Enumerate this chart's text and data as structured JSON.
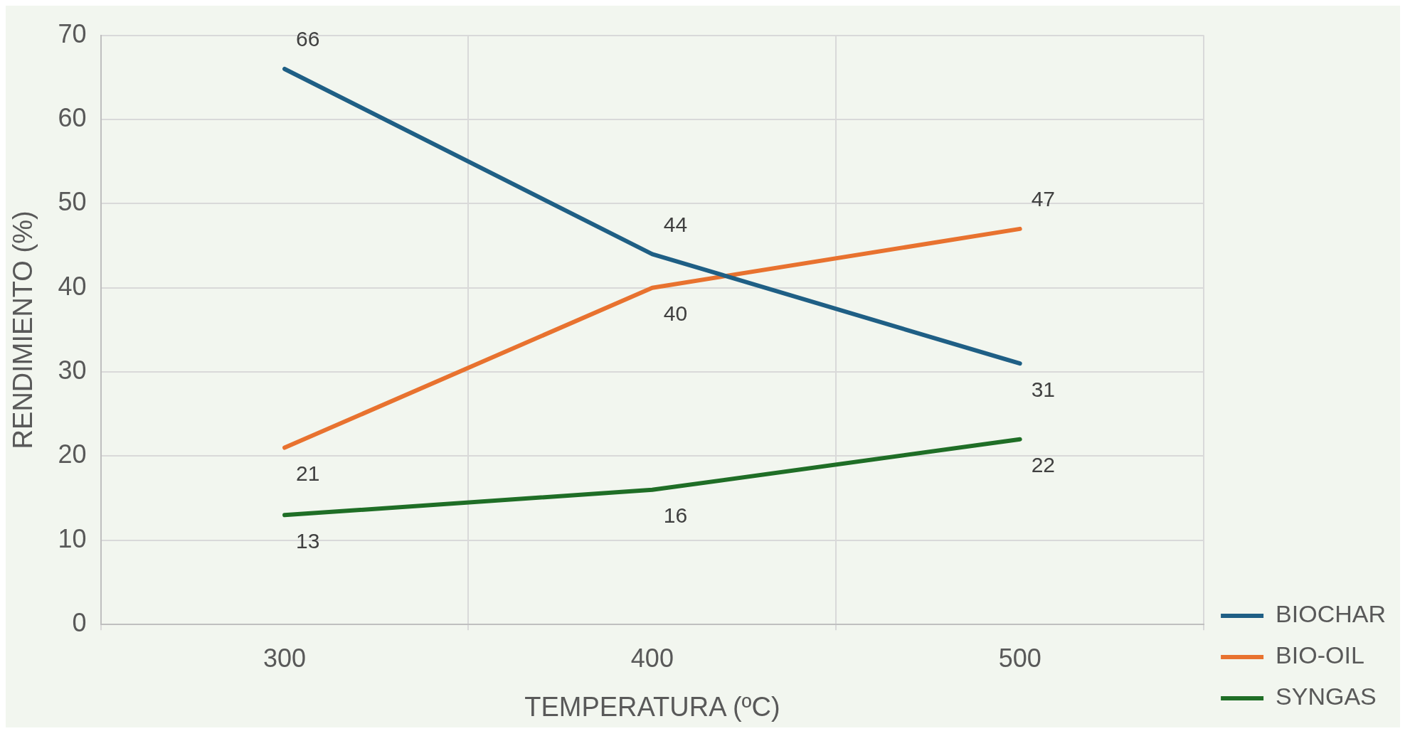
{
  "chart_data": {
    "type": "line",
    "xlabel": "TEMPERATURA (ºC)",
    "ylabel": "RENDIMIENTO (%)",
    "categories": [
      "300",
      "400",
      "500"
    ],
    "series": [
      {
        "name": "BIOCHAR",
        "color": "#1f5f85",
        "values": [
          66,
          44,
          31
        ]
      },
      {
        "name": "BIO-OIL",
        "color": "#e8722f",
        "values": [
          21,
          40,
          47
        ]
      },
      {
        "name": "SYNGAS",
        "color": "#1f6e26",
        "values": [
          13,
          16,
          22
        ]
      }
    ],
    "ylim": [
      0,
      70
    ],
    "yticks": [
      0,
      10,
      20,
      30,
      40,
      50,
      60,
      70
    ],
    "grid": true,
    "legend": "right",
    "marker": "none",
    "line_style": "solid",
    "data_labels": true
  }
}
